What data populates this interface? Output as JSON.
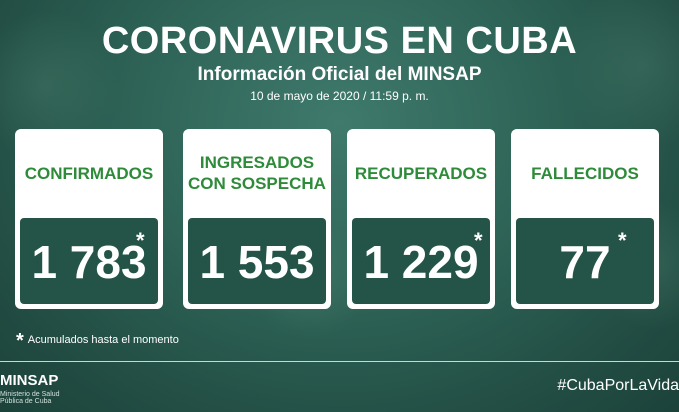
{
  "header": {
    "title": "CORONAVIRUS EN CUBA",
    "subtitle": "Información Oficial del MINSAP",
    "date": "10 de mayo de 2020 / 11:59 p. m."
  },
  "cards": [
    {
      "label": "CONFIRMADOS",
      "value": "1 783",
      "asterisk": "*"
    },
    {
      "label": "INGRESADOS CON SOSPECHA",
      "value": "1 553",
      "asterisk": ""
    },
    {
      "label": "RECUPERADOS",
      "value": "1 229",
      "asterisk": "*"
    },
    {
      "label": "FALLECIDOS",
      "value": "77",
      "asterisk": "*"
    }
  ],
  "footnote": {
    "star": "*",
    "text": "Acumulados hasta el momento"
  },
  "footer": {
    "logo_text": "MINSAP",
    "logo_subtext": "Ministerio de Salud Pública de Cuba",
    "hashtag": "#CubaPorLaVida"
  },
  "colors": {
    "background": "#2f6558",
    "card_label": "#2e8b3a",
    "value_box": "#245447"
  }
}
